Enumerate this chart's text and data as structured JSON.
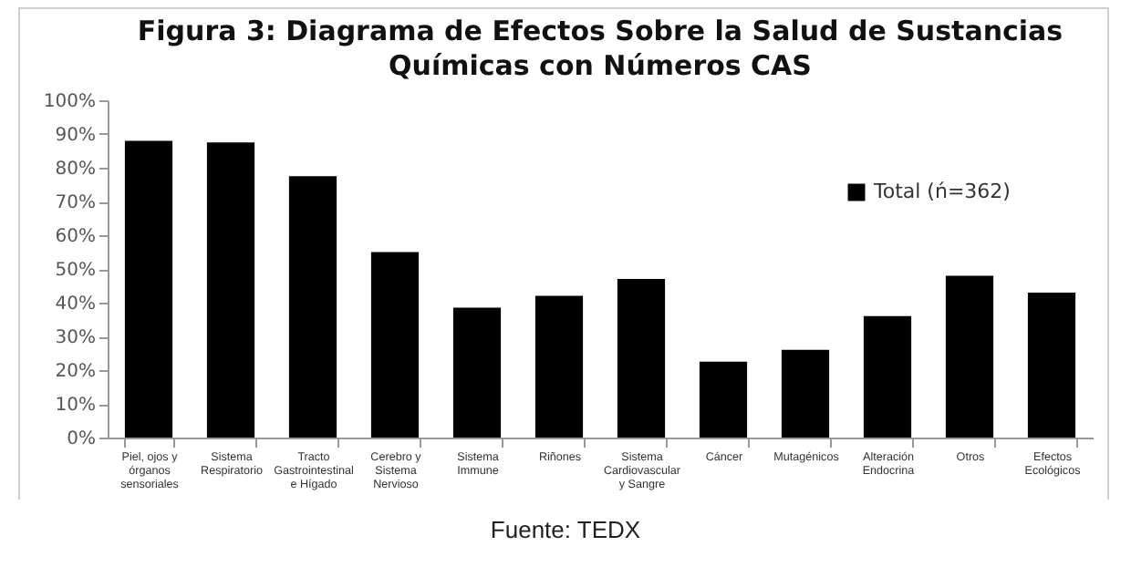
{
  "chart_data": {
    "type": "bar",
    "title": "Figura 3: Diagrama de Efectos Sobre la Salud de Sustancias Químicas con Números CAS",
    "categories": [
      "Piel, ojos y órganos sensoriales",
      "Sistema Respiratorio",
      "Tracto Gastrointestinal e Hígado",
      "Cerebro y Sistema Nervioso",
      "Sistema Immune",
      "Riñones",
      "Sistema Cardiovascular y Sangre",
      "Cáncer",
      "Mutagénicos",
      "Alteración Endocrina",
      "Otros",
      "Efectos Ecológicos"
    ],
    "series": [
      {
        "name": "Total (ń=362)",
        "color": "#000000",
        "values": [
          88,
          87.5,
          77.5,
          55,
          38.5,
          42,
          47,
          22.5,
          26,
          36,
          48,
          43
        ]
      }
    ],
    "ylim": [
      0,
      100
    ],
    "yticks": [
      {
        "value": 0,
        "label": "0%"
      },
      {
        "value": 10,
        "label": "10%"
      },
      {
        "value": 20,
        "label": "20%"
      },
      {
        "value": 30,
        "label": "30%"
      },
      {
        "value": 40,
        "label": "40%"
      },
      {
        "value": 50,
        "label": "50%"
      },
      {
        "value": 60,
        "label": "60%"
      },
      {
        "value": 70,
        "label": "70%"
      },
      {
        "value": 80,
        "label": "80%"
      },
      {
        "value": 90,
        "label": "90%"
      },
      {
        "value": 100,
        "label": "100%"
      }
    ],
    "grid": false,
    "legend": "top right",
    "annotations": [
      "Fuente: TEDX"
    ]
  }
}
